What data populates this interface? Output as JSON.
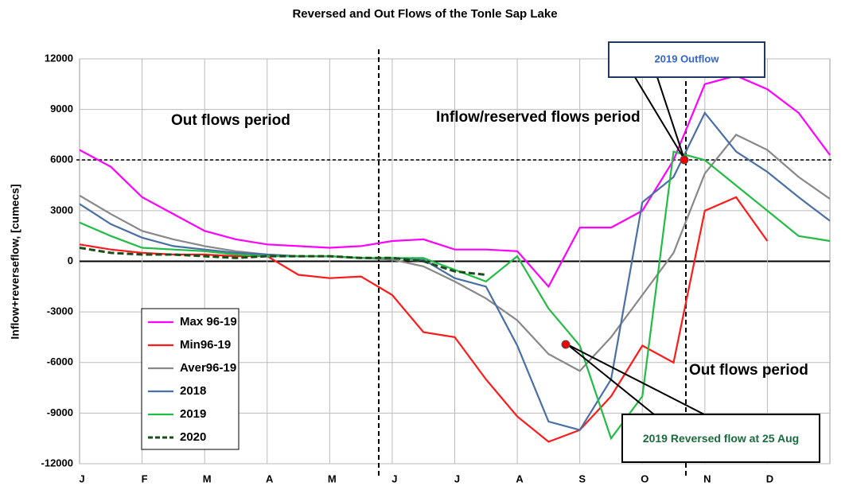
{
  "chart_data": {
    "type": "line",
    "title": "Reversed and Out Flows of the Tonle Sap Lake",
    "y_label": "Inflow+reverseflow, [cumecs]",
    "categories": [
      "J",
      null,
      "F",
      null,
      "M",
      null,
      "A",
      null,
      "M",
      null,
      "J",
      null,
      "J",
      null,
      "A",
      null,
      "S",
      null,
      "O",
      null,
      "N",
      null,
      "D",
      null,
      null
    ],
    "ylim": [
      -12000,
      12000
    ],
    "yticks": [
      -12000,
      -9000,
      -6000,
      -3000,
      0,
      3000,
      6000,
      9000,
      12000
    ],
    "grid": true,
    "legend": "lower left",
    "series": [
      {
        "name": "Max 96-19",
        "color": "#ff00ff",
        "values": [
          6600,
          5600,
          3800,
          2800,
          1800,
          1300,
          1000,
          900,
          800,
          900,
          1200,
          1300,
          700,
          700,
          600,
          -1500,
          2000,
          2000,
          3000,
          6000,
          10500,
          11000,
          10200,
          8800,
          6300
        ]
      },
      {
        "name": "Min96-19",
        "color": "#ff1a1a",
        "values": [
          1000,
          700,
          500,
          400,
          400,
          300,
          300,
          -800,
          -1000,
          -900,
          -2000,
          -4200,
          -4500,
          -7000,
          -9200,
          -10700,
          -10000,
          -8000,
          -5000,
          -6000,
          3000,
          3800,
          1200,
          null,
          null
        ]
      },
      {
        "name": "Aver96-19",
        "color": "#888888",
        "values": [
          3900,
          2800,
          1800,
          1300,
          900,
          600,
          400,
          300,
          300,
          200,
          100,
          -300,
          -1200,
          -2200,
          -3500,
          -5500,
          -6500,
          -4500,
          -2000,
          500,
          5200,
          7500,
          6600,
          5000,
          3700
        ]
      },
      {
        "name": "2018",
        "color": "#4a6fa5",
        "values": [
          3400,
          2200,
          1400,
          900,
          700,
          500,
          400,
          300,
          300,
          200,
          200,
          100,
          -1000,
          -1500,
          -5000,
          -9500,
          -10000,
          -7000,
          3500,
          5000,
          8800,
          6500,
          5300,
          3800,
          2400
        ]
      },
      {
        "name": "2019",
        "color": "#22bb44",
        "values": [
          2300,
          1500,
          800,
          700,
          600,
          400,
          300,
          300,
          300,
          200,
          200,
          200,
          -500,
          -1200,
          300,
          -2800,
          -5000,
          -10500,
          -8000,
          6500,
          6000,
          4500,
          3000,
          1500,
          1200
        ]
      },
      {
        "name": "2020",
        "color": "#1a4d1a",
        "values": [
          800,
          500,
          400,
          400,
          300,
          200,
          300,
          300,
          300,
          200,
          200,
          0,
          -600,
          -800,
          null,
          null,
          null,
          null,
          null,
          null,
          null,
          null,
          null,
          null,
          null
        ]
      }
    ],
    "annotations": [
      "Out flows period",
      "Inflow/reserved flows period",
      "Out flows period",
      "2019 Outflow",
      "2019 Reversed flow at 25 Aug"
    ]
  }
}
